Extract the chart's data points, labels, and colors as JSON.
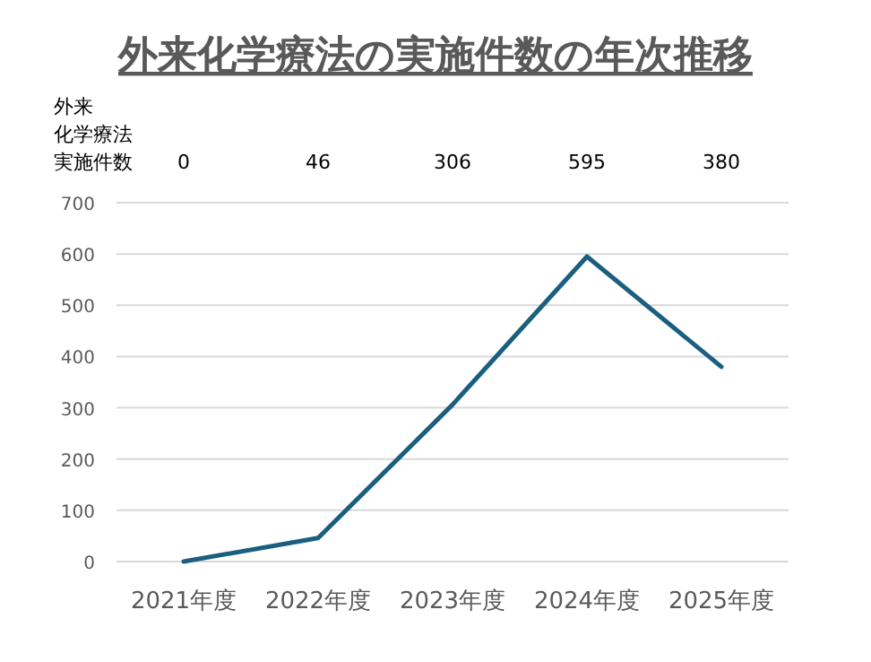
{
  "chart_data": {
    "type": "line",
    "title": "外来化学療法の実施件数の年次推移",
    "categories": [
      "2021年度",
      "2022年度",
      "2023年度",
      "2024年度",
      "2025年度"
    ],
    "series": [
      {
        "name": "外来化学療法実施件数",
        "color": "#1a5e80",
        "values": [
          0,
          46,
          306,
          595,
          380
        ]
      }
    ],
    "ylim": [
      0,
      700
    ],
    "yticks": [
      0,
      100,
      200,
      300,
      400,
      500,
      600,
      700
    ],
    "grid": "y",
    "data_labels": true,
    "marker": "none",
    "line_style": "solid"
  }
}
